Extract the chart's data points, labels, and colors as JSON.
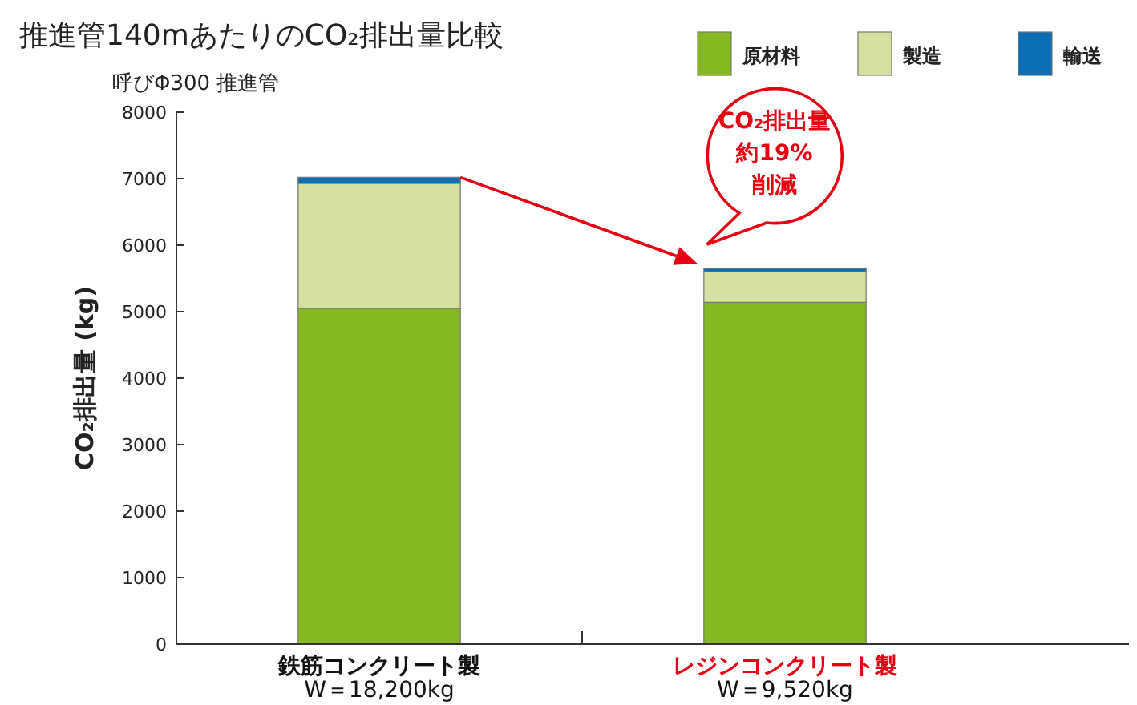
{
  "chart_data": {
    "type": "bar",
    "title": "推進管140mあたりのCO₂排出量比較",
    "subtitle": "呼びΦ300 推進管",
    "ylabel": "CO₂排出量 (kg)",
    "categories": [
      "鉄筋コンクリート製\nW＝18,200kg",
      "レジンコンクリート製\nW＝9,520kg"
    ],
    "stacked": true,
    "legend": "top right",
    "grid": false,
    "series": [
      {
        "name": "原材料",
        "color": "#86b822",
        "values": [
          5050,
          5140
        ]
      },
      {
        "name": "製造",
        "color": "#d3e0a0",
        "values": [
          1880,
          460
        ]
      },
      {
        "name": "輸送",
        "color": "#0a6eb4",
        "values": [
          90,
          50
        ]
      }
    ],
    "ylim": [
      0,
      8000
    ],
    "yticks": [
      0,
      1000,
      2000,
      3000,
      4000,
      5000,
      6000,
      7000,
      8000
    ],
    "annotations": [
      "CO₂排出量",
      "約19%",
      "削減"
    ]
  }
}
